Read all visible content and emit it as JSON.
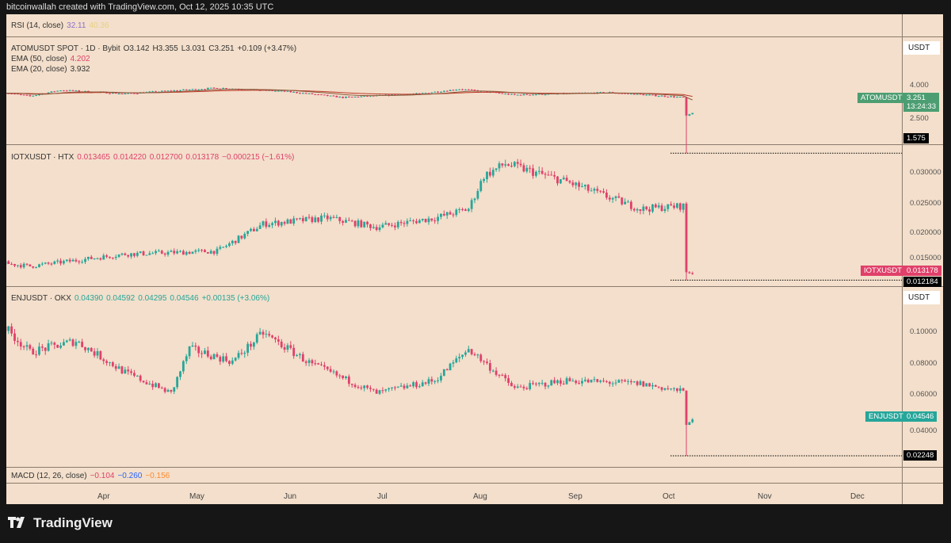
{
  "header": {
    "credit": "bitcoinwallah created with TradingView.com, Oct 12, 2025 10:35 UTC"
  },
  "rsi": {
    "label": "RSI (14, close)",
    "value": "32.11",
    "value2": "40.36"
  },
  "atom": {
    "title": "ATOMUSDT SPOT · 1D · Bybit",
    "o": "O3.142",
    "h": "H3.355",
    "l": "L3.031",
    "c": "C3.251",
    "chg": "+0.109 (+3.47%)",
    "ema50_label": "EMA (50, close)",
    "ema50": "4.202",
    "ema20_label": "EMA (20, close)",
    "ema20": "3.932",
    "unit": "USDT",
    "ticks": [
      "4.000",
      "2.500"
    ],
    "tag_symbol": "ATOMUSDT",
    "tag_price": "3.251",
    "tag_countdown": "13:24:33",
    "low_tag": "1.575"
  },
  "iotx": {
    "title": "IOTXUSDT · HTX",
    "o": "0.013465",
    "h": "0.014220",
    "l": "0.012700",
    "c": "0.013178",
    "chg": "−0.000215 (−1.61%)",
    "ticks": [
      "0.030000",
      "0.025000",
      "0.020000",
      "0.015000"
    ],
    "tag_symbol": "IOTXUSDT",
    "tag_price": "0.013178",
    "low_tag": "0.012184"
  },
  "enj": {
    "title": "ENJUSDT · OKX",
    "o": "0.04390",
    "h": "0.04592",
    "l": "0.04295",
    "c": "0.04546",
    "chg": "+0.00135 (+3.06%)",
    "unit": "USDT",
    "ticks": [
      "0.10000",
      "0.08000",
      "0.06000",
      "0.04000"
    ],
    "tag_symbol": "ENJUSDT",
    "tag_price": "0.04546",
    "low_tag": "0.02248"
  },
  "macd": {
    "label": "MACD (12, 26, close)",
    "v1": "−0.104",
    "v2": "−0.260",
    "v3": "−0.156"
  },
  "time_axis": [
    "Apr",
    "May",
    "Jun",
    "Jul",
    "Aug",
    "Sep",
    "Oct",
    "Nov",
    "Dec"
  ],
  "footer": {
    "brand": "TradingView"
  },
  "colors": {
    "up": "#26a69a",
    "down": "#e0406a",
    "bg": "#f3dfcb",
    "ema50": "#c0392b",
    "ema20": "#8a5a3a"
  },
  "chart_data": [
    {
      "type": "candlestick",
      "symbol": "ATOMUSDT",
      "scale": "log",
      "x_range": [
        "2025-03-01",
        "2025-10-12"
      ],
      "anchors": [
        [
          "2025-03-01",
          4.7
        ],
        [
          "2025-03-10",
          4.4
        ],
        [
          "2025-03-20",
          4.9
        ],
        [
          "2025-04-10",
          4.6
        ],
        [
          "2025-05-10",
          5.1
        ],
        [
          "2025-06-01",
          4.8
        ],
        [
          "2025-06-20",
          4.3
        ],
        [
          "2025-07-15",
          4.6
        ],
        [
          "2025-07-28",
          5.0
        ],
        [
          "2025-08-15",
          4.5
        ],
        [
          "2025-09-15",
          4.7
        ],
        [
          "2025-10-09",
          4.3
        ],
        [
          "2025-10-10",
          3.1
        ],
        [
          "2025-10-12",
          3.251
        ]
      ],
      "crash_low": 1.575
    },
    {
      "type": "candlestick",
      "symbol": "IOTXUSDT",
      "scale": "linear",
      "x_range": [
        "2025-03-01",
        "2025-10-12"
      ],
      "anchors": [
        [
          "2025-03-01",
          0.015
        ],
        [
          "2025-03-10",
          0.0145
        ],
        [
          "2025-04-10",
          0.0165
        ],
        [
          "2025-05-10",
          0.017
        ],
        [
          "2025-05-25",
          0.0215
        ],
        [
          "2025-06-15",
          0.0225
        ],
        [
          "2025-07-01",
          0.021
        ],
        [
          "2025-07-20",
          0.0225
        ],
        [
          "2025-07-31",
          0.024
        ],
        [
          "2025-08-05",
          0.0295
        ],
        [
          "2025-08-12",
          0.0315
        ],
        [
          "2025-09-01",
          0.0285
        ],
        [
          "2025-09-25",
          0.024
        ],
        [
          "2025-10-09",
          0.0245
        ],
        [
          "2025-10-10",
          0.0135
        ],
        [
          "2025-10-12",
          0.013178
        ]
      ],
      "crash_low": 0.012184
    },
    {
      "type": "candlestick",
      "symbol": "ENJUSDT",
      "scale": "linear",
      "x_range": [
        "2025-03-01",
        "2025-10-12"
      ],
      "anchors": [
        [
          "2025-03-01",
          0.105
        ],
        [
          "2025-03-10",
          0.088
        ],
        [
          "2025-03-25",
          0.095
        ],
        [
          "2025-04-10",
          0.075
        ],
        [
          "2025-04-25",
          0.062
        ],
        [
          "2025-05-01",
          0.09
        ],
        [
          "2025-05-15",
          0.082
        ],
        [
          "2025-05-25",
          0.1
        ],
        [
          "2025-06-10",
          0.08
        ],
        [
          "2025-07-01",
          0.062
        ],
        [
          "2025-07-20",
          0.07
        ],
        [
          "2025-07-31",
          0.09
        ],
        [
          "2025-08-15",
          0.065
        ],
        [
          "2025-09-01",
          0.07
        ],
        [
          "2025-09-25",
          0.068
        ],
        [
          "2025-10-09",
          0.063
        ],
        [
          "2025-10-10",
          0.042
        ],
        [
          "2025-10-12",
          0.04546
        ]
      ],
      "crash_low": 0.02248
    }
  ]
}
